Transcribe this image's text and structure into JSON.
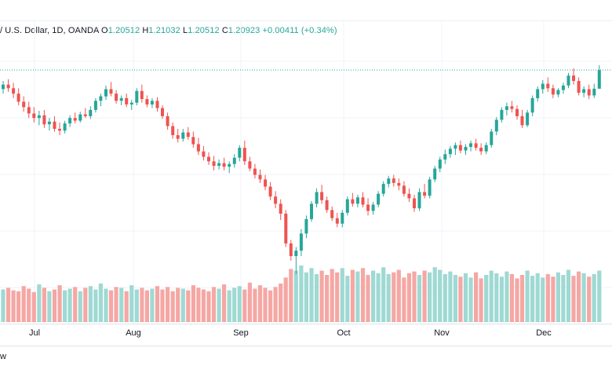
{
  "legend": {
    "symbol": "/ U.S. Dollar, 1D, OANDA",
    "open_label": "O",
    "open": "1.20512",
    "high_label": "H",
    "high": "1.21032",
    "low_label": "L",
    "low": "1.20512",
    "close_label": "C",
    "close": "1.20923",
    "change": "+0.00411 (+0.34%)"
  },
  "footer": {
    "text": "w"
  },
  "colors": {
    "up": "#26a69a",
    "down": "#ef5350",
    "vol_up": "#9fd9d3",
    "vol_down": "#f5a7a4",
    "price_line": "#26a69a"
  },
  "chart_data": {
    "type": "candlestick",
    "title": "",
    "x_ticks": [
      "Jul",
      "Aug",
      "Sep",
      "Oct",
      "Nov",
      "Dec"
    ],
    "last_close": 1.20923,
    "price_range": [
      1.16,
      1.215
    ],
    "candles": [
      [
        1.205,
        1.2068,
        1.204,
        1.206
      ],
      [
        1.206,
        1.2072,
        1.2044,
        1.2052
      ],
      [
        1.2052,
        1.2064,
        1.203,
        1.204
      ],
      [
        1.204,
        1.2052,
        1.2014,
        1.2022
      ],
      [
        1.2022,
        1.2034,
        1.2,
        1.201
      ],
      [
        1.201,
        1.2022,
        1.1986,
        1.1996
      ],
      [
        1.1996,
        1.201,
        1.1976,
        1.1986
      ],
      [
        1.1986,
        1.2002,
        1.197,
        1.1992
      ],
      [
        1.1992,
        1.2004,
        1.1964,
        1.1972
      ],
      [
        1.1972,
        1.1986,
        1.1958,
        1.1978
      ],
      [
        1.1978,
        1.199,
        1.1956,
        1.1962
      ],
      [
        1.1962,
        1.1976,
        1.1948,
        1.1958
      ],
      [
        1.1958,
        1.198,
        1.1952,
        1.1974
      ],
      [
        1.1974,
        1.1992,
        1.1966,
        1.1986
      ],
      [
        1.1986,
        1.1998,
        1.1974,
        1.198
      ],
      [
        1.198,
        1.2,
        1.1976,
        1.1994
      ],
      [
        1.1994,
        1.2008,
        1.1986,
        1.199
      ],
      [
        1.199,
        1.2012,
        1.1984,
        1.2004
      ],
      [
        1.2004,
        1.203,
        1.1998,
        1.2024
      ],
      [
        1.2024,
        1.204,
        1.2012,
        1.2034
      ],
      [
        1.2034,
        1.2058,
        1.2026,
        1.205
      ],
      [
        1.205,
        1.2066,
        1.2034,
        1.204
      ],
      [
        1.204,
        1.2048,
        1.2018,
        1.2024
      ],
      [
        1.2024,
        1.2036,
        1.2014,
        1.203
      ],
      [
        1.203,
        1.204,
        1.201,
        1.2016
      ],
      [
        1.2016,
        1.2026,
        1.2004,
        1.202
      ],
      [
        1.202,
        1.2052,
        1.2014,
        1.2046
      ],
      [
        1.2046,
        1.206,
        1.202,
        1.2028
      ],
      [
        1.2028,
        1.2036,
        1.201,
        1.2016
      ],
      [
        1.2016,
        1.203,
        1.2008,
        1.2024
      ],
      [
        1.2024,
        1.2032,
        1.2,
        1.2008
      ],
      [
        1.2008,
        1.2014,
        1.1984,
        1.199
      ],
      [
        1.199,
        1.1998,
        1.196,
        1.1968
      ],
      [
        1.1968,
        1.1976,
        1.194,
        1.1948
      ],
      [
        1.1948,
        1.1962,
        1.1932,
        1.194
      ],
      [
        1.194,
        1.1962,
        1.1934,
        1.1954
      ],
      [
        1.1954,
        1.1966,
        1.1938,
        1.1944
      ],
      [
        1.1944,
        1.1956,
        1.192,
        1.1928
      ],
      [
        1.1928,
        1.1942,
        1.1904,
        1.1912
      ],
      [
        1.1912,
        1.1924,
        1.1892,
        1.19
      ],
      [
        1.19,
        1.191,
        1.1882,
        1.189
      ],
      [
        1.189,
        1.1902,
        1.187,
        1.188
      ],
      [
        1.188,
        1.1894,
        1.1872,
        1.1886
      ],
      [
        1.1886,
        1.1898,
        1.187,
        1.1878
      ],
      [
        1.1878,
        1.189,
        1.1864,
        1.1884
      ],
      [
        1.1884,
        1.1906,
        1.1876,
        1.1898
      ],
      [
        1.1898,
        1.1926,
        1.189,
        1.192
      ],
      [
        1.192,
        1.1936,
        1.1882,
        1.189
      ],
      [
        1.189,
        1.19,
        1.1868,
        1.1874
      ],
      [
        1.1874,
        1.1884,
        1.1852,
        1.186
      ],
      [
        1.186,
        1.1872,
        1.1842,
        1.185
      ],
      [
        1.185,
        1.186,
        1.1826,
        1.1834
      ],
      [
        1.1834,
        1.1844,
        1.1804,
        1.1812
      ],
      [
        1.1812,
        1.1824,
        1.1786,
        1.1796
      ],
      [
        1.1796,
        1.1806,
        1.176,
        1.1774
      ],
      [
        1.1774,
        1.1782,
        1.17,
        1.1708
      ],
      [
        1.1708,
        1.1716,
        1.167,
        1.168
      ],
      [
        1.168,
        1.17,
        1.164,
        1.1692
      ],
      [
        1.1692,
        1.174,
        1.168,
        1.173
      ],
      [
        1.173,
        1.177,
        1.172,
        1.1762
      ],
      [
        1.1762,
        1.1802,
        1.1756,
        1.1796
      ],
      [
        1.1796,
        1.183,
        1.1788,
        1.1822
      ],
      [
        1.1822,
        1.1838,
        1.1796,
        1.1804
      ],
      [
        1.1804,
        1.1812,
        1.1776,
        1.1782
      ],
      [
        1.1782,
        1.179,
        1.1758,
        1.1764
      ],
      [
        1.1764,
        1.1776,
        1.1744,
        1.1752
      ],
      [
        1.1752,
        1.1782,
        1.1744,
        1.1776
      ],
      [
        1.1776,
        1.1812,
        1.177,
        1.1806
      ],
      [
        1.1806,
        1.182,
        1.179,
        1.1796
      ],
      [
        1.1796,
        1.1816,
        1.1788,
        1.181
      ],
      [
        1.181,
        1.1822,
        1.1788,
        1.1794
      ],
      [
        1.1794,
        1.1808,
        1.177,
        1.178
      ],
      [
        1.178,
        1.18,
        1.1772,
        1.1794
      ],
      [
        1.1794,
        1.1824,
        1.1788,
        1.1818
      ],
      [
        1.1818,
        1.1846,
        1.1812,
        1.184
      ],
      [
        1.184,
        1.1858,
        1.1832,
        1.1852
      ],
      [
        1.1852,
        1.186,
        1.1834,
        1.1842
      ],
      [
        1.1842,
        1.1852,
        1.1826,
        1.1836
      ],
      [
        1.1836,
        1.1846,
        1.1812,
        1.1818
      ],
      [
        1.1818,
        1.183,
        1.18,
        1.1808
      ],
      [
        1.1808,
        1.1816,
        1.1778,
        1.1786
      ],
      [
        1.1786,
        1.183,
        1.178,
        1.1822
      ],
      [
        1.1822,
        1.184,
        1.1808,
        1.1814
      ],
      [
        1.1814,
        1.1856,
        1.1808,
        1.185
      ],
      [
        1.185,
        1.188,
        1.1844,
        1.1874
      ],
      [
        1.1874,
        1.19,
        1.1866,
        1.1894
      ],
      [
        1.1894,
        1.1916,
        1.1884,
        1.1906
      ],
      [
        1.1906,
        1.1924,
        1.1898,
        1.1918
      ],
      [
        1.1918,
        1.1932,
        1.1904,
        1.1926
      ],
      [
        1.1926,
        1.1936,
        1.1908,
        1.1914
      ],
      [
        1.1914,
        1.1928,
        1.1904,
        1.1922
      ],
      [
        1.1922,
        1.1936,
        1.1912,
        1.193
      ],
      [
        1.193,
        1.194,
        1.1914,
        1.192
      ],
      [
        1.192,
        1.193,
        1.1904,
        1.1912
      ],
      [
        1.1912,
        1.1932,
        1.1906,
        1.1926
      ],
      [
        1.1926,
        1.1962,
        1.192,
        1.1956
      ],
      [
        1.1956,
        1.1988,
        1.1948,
        1.1982
      ],
      [
        1.1982,
        1.201,
        1.1976,
        1.2004
      ],
      [
        1.2004,
        1.202,
        1.1992,
        1.2012
      ],
      [
        1.2012,
        1.2024,
        1.1998,
        1.2006
      ],
      [
        1.2006,
        1.2014,
        1.1982,
        1.199
      ],
      [
        1.199,
        1.2004,
        1.1964,
        1.197
      ],
      [
        1.197,
        1.2004,
        1.1966,
        1.1998
      ],
      [
        1.1998,
        1.2036,
        1.199,
        1.203
      ],
      [
        1.203,
        1.2056,
        1.2022,
        1.205
      ],
      [
        1.205,
        1.207,
        1.204,
        1.2062
      ],
      [
        1.2062,
        1.2076,
        1.2044,
        1.2052
      ],
      [
        1.2052,
        1.206,
        1.203,
        1.2038
      ],
      [
        1.2038,
        1.2052,
        1.2032,
        1.2048
      ],
      [
        1.2048,
        1.2064,
        1.204,
        1.2058
      ],
      [
        1.2058,
        1.2086,
        1.2052,
        1.208
      ],
      [
        1.208,
        1.2096,
        1.206,
        1.2068
      ],
      [
        1.2068,
        1.2076,
        1.2036,
        1.2042
      ],
      [
        1.2042,
        1.2056,
        1.2032,
        1.205
      ],
      [
        1.205,
        1.206,
        1.2028,
        1.2036
      ],
      [
        1.2036,
        1.2062,
        1.203,
        1.2051
      ],
      [
        1.2051,
        1.2103,
        1.2051,
        1.2092
      ]
    ],
    "volume": [
      38,
      40,
      37,
      36,
      42,
      39,
      35,
      44,
      40,
      36,
      38,
      43,
      37,
      39,
      41,
      36,
      40,
      42,
      38,
      45,
      39,
      37,
      41,
      40,
      36,
      43,
      38,
      40,
      37,
      39,
      42,
      38,
      41,
      36,
      40,
      39,
      37,
      43,
      40,
      38,
      36,
      41,
      39,
      44,
      37,
      40,
      42,
      38,
      46,
      39,
      43,
      40,
      37,
      41,
      45,
      52,
      62,
      60,
      66,
      58,
      63,
      56,
      60,
      55,
      62,
      58,
      63,
      54,
      61,
      59,
      63,
      55,
      60,
      57,
      64,
      56,
      58,
      61,
      52,
      57,
      59,
      55,
      60,
      58,
      64,
      61,
      56,
      59,
      55,
      53,
      57,
      52,
      58,
      51,
      55,
      60,
      57,
      53,
      59,
      56,
      51,
      55,
      60,
      54,
      57,
      52,
      56,
      53,
      58,
      55,
      61,
      54,
      59,
      57,
      53,
      56,
      60
    ]
  }
}
